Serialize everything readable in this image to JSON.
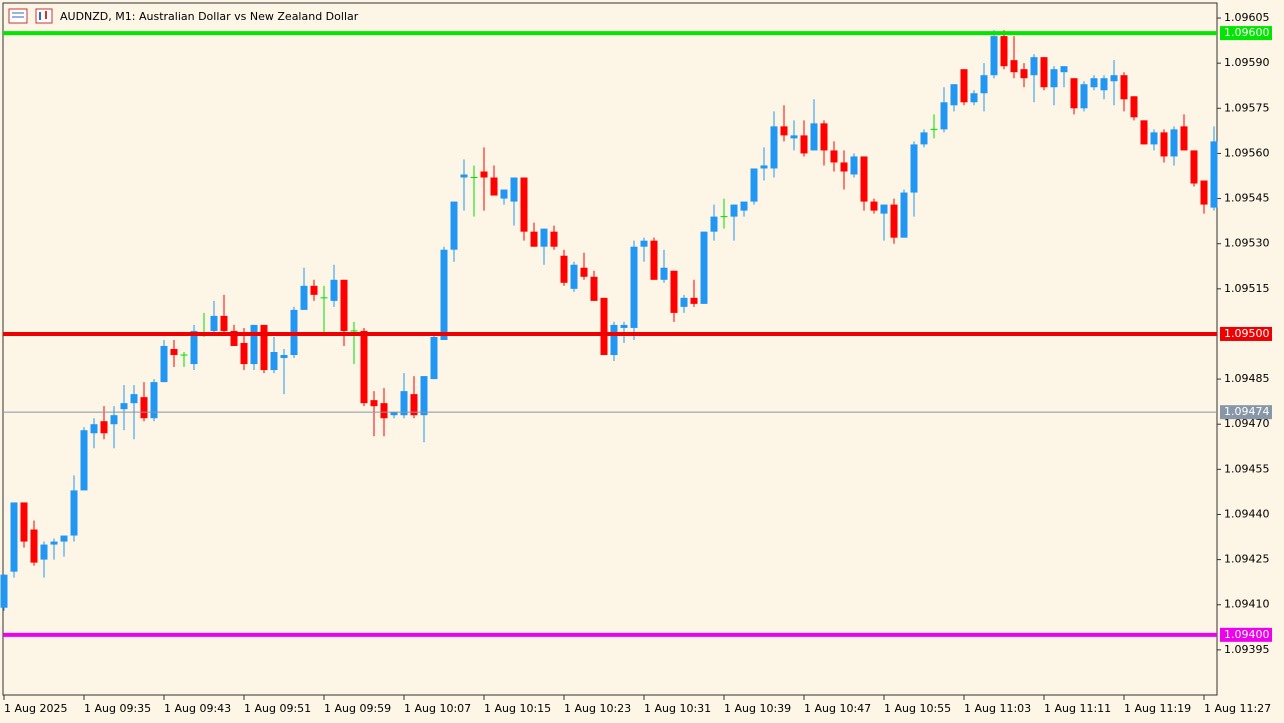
{
  "chart_data": {
    "type": "candlestick",
    "title": "AUDNZD, M1:  Australian Dollar vs New Zealand Dollar",
    "categories": [
      "1 Aug 2025",
      null,
      null,
      null,
      null,
      null,
      null,
      null,
      "1 Aug 09:35",
      null,
      null,
      null,
      null,
      null,
      null,
      null,
      "1 Aug 09:43",
      null,
      null,
      null,
      null,
      null,
      null,
      null,
      "1 Aug 09:51",
      null,
      null,
      null,
      null,
      null,
      null,
      null,
      "1 Aug 09:59",
      null,
      null,
      null,
      null,
      null,
      null,
      null,
      "1 Aug 10:07",
      null,
      null,
      null,
      null,
      null,
      null,
      null,
      "1 Aug 10:15",
      null,
      null,
      null,
      null,
      null,
      null,
      null,
      "1 Aug 10:23",
      null,
      null,
      null,
      null,
      null,
      null,
      null,
      "1 Aug 10:31",
      null,
      null,
      null,
      null,
      null,
      null,
      null,
      "1 Aug 10:39",
      null,
      null,
      null,
      null,
      null,
      null,
      null,
      "1 Aug 10:47",
      null,
      null,
      null,
      null,
      null,
      null,
      null,
      "1 Aug 10:55",
      null,
      null,
      null,
      null,
      null,
      null,
      null,
      "1 Aug 11:03",
      null,
      null,
      null,
      null,
      null,
      null,
      null,
      "1 Aug 11:11",
      null,
      null,
      null,
      null,
      null,
      null,
      null,
      "1 Aug 11:19",
      null,
      null,
      null,
      null,
      null,
      null,
      null,
      "1 Aug 11:27",
      null
    ],
    "open": [
      1.09409,
      1.09421,
      1.09444,
      1.09435,
      1.09425,
      1.0943,
      1.09431,
      1.09433,
      1.09448,
      1.09467,
      1.09471,
      1.0947,
      1.09475,
      1.09477,
      1.09479,
      1.09472,
      1.09484,
      1.09495,
      1.09493,
      1.0949,
      1.095,
      1.09501,
      1.09506,
      1.09501,
      1.09497,
      1.0949,
      1.09503,
      1.09488,
      1.09492,
      1.09493,
      1.09508,
      1.09516,
      1.09512,
      1.09511,
      1.09518,
      1.09501,
      1.09501,
      1.09478,
      1.09477,
      1.09473,
      1.09473,
      1.0948,
      1.09473,
      1.09485,
      1.09498,
      1.09528,
      1.09552,
      1.09552,
      1.09554,
      1.09552,
      1.09545,
      1.09544,
      1.09552,
      1.09534,
      1.09529,
      1.09534,
      1.09526,
      1.09515,
      1.09522,
      1.09519,
      1.09512,
      1.09493,
      1.09502,
      1.09502,
      1.09529,
      1.09531,
      1.09518,
      1.09521,
      1.09509,
      1.09512,
      1.0951,
      1.09534,
      1.09539,
      1.09539,
      1.09541,
      1.09544,
      1.09555,
      1.09555,
      1.09569,
      1.09565,
      1.09566,
      1.09561,
      1.0957,
      1.09561,
      1.09557,
      1.09553,
      1.09559,
      1.09544,
      1.0954,
      1.09543,
      1.09532,
      1.09547,
      1.09563,
      1.09568,
      1.09568,
      1.09576,
      1.09588,
      1.09577,
      1.0958,
      1.09586,
      1.09599,
      1.09591,
      1.09588,
      1.09586,
      1.09592,
      1.09582,
      1.09587,
      1.09585,
      1.09575,
      1.09582,
      1.09581,
      1.09584,
      1.09586,
      1.09579,
      1.09571,
      1.09563,
      1.09567,
      1.09559,
      1.09569,
      1.09561,
      1.09551,
      1.09542
    ],
    "high": [
      1.0942,
      1.09444,
      1.09444,
      1.09438,
      1.09431,
      1.09432,
      1.09433,
      1.09453,
      1.09469,
      1.09472,
      1.09476,
      1.09476,
      1.09483,
      1.09483,
      1.09484,
      1.09485,
      1.09498,
      1.09498,
      1.09494,
      1.09503,
      1.09507,
      1.09511,
      1.09513,
      1.09503,
      1.09502,
      1.09503,
      1.09503,
      1.09499,
      1.09495,
      1.09509,
      1.09522,
      1.09518,
      1.09516,
      1.09523,
      1.09518,
      1.09504,
      1.09502,
      1.09481,
      1.09482,
      1.09474,
      1.09487,
      1.09486,
      1.09486,
      1.095,
      1.09529,
      1.09544,
      1.09558,
      1.09556,
      1.09562,
      1.09556,
      1.09548,
      1.09552,
      1.09552,
      1.09537,
      1.09535,
      1.09536,
      1.09528,
      1.09524,
      1.09527,
      1.09521,
      1.09512,
      1.09504,
      1.09504,
      1.09531,
      1.09532,
      1.09532,
      1.09528,
      1.09521,
      1.09513,
      1.09518,
      1.09534,
      1.09543,
      1.09545,
      1.09543,
      1.09544,
      1.09555,
      1.09562,
      1.09574,
      1.09576,
      1.09571,
      1.09571,
      1.09578,
      1.09571,
      1.09564,
      1.09561,
      1.0956,
      1.09559,
      1.09545,
      1.09543,
      1.09545,
      1.09548,
      1.09564,
      1.09568,
      1.09573,
      1.09582,
      1.09583,
      1.09588,
      1.09581,
      1.0959,
      1.09601,
      1.09601,
      1.09599,
      1.0959,
      1.09593,
      1.09592,
      1.09589,
      1.09589,
      1.09585,
      1.09584,
      1.09586,
      1.09586,
      1.09591,
      1.09587,
      1.09579,
      1.09571,
      1.09568,
      1.09568,
      1.09569,
      1.09573,
      1.09561,
      1.09551,
      1.09569
    ],
    "low": [
      1.09408,
      1.09419,
      1.09429,
      1.09423,
      1.09419,
      1.09425,
      1.09426,
      1.09431,
      1.09448,
      1.09462,
      1.09465,
      1.09462,
      1.09468,
      1.09465,
      1.09471,
      1.09471,
      1.09484,
      1.09489,
      1.09489,
      1.09488,
      1.09499,
      1.095,
      1.095,
      1.09496,
      1.09488,
      1.09488,
      1.09487,
      1.09487,
      1.0948,
      1.09492,
      1.09508,
      1.09511,
      1.095,
      1.09509,
      1.09496,
      1.0949,
      1.09476,
      1.09466,
      1.09466,
      1.09472,
      1.09472,
      1.09472,
      1.09464,
      1.09485,
      1.09498,
      1.09524,
      1.09541,
      1.09539,
      1.09541,
      1.09546,
      1.09543,
      1.09536,
      1.09531,
      1.09529,
      1.09523,
      1.09528,
      1.09516,
      1.09514,
      1.09518,
      1.09511,
      1.09493,
      1.09491,
      1.09497,
      1.09498,
      1.09524,
      1.09518,
      1.09517,
      1.09504,
      1.09507,
      1.09509,
      1.0951,
      1.09531,
      1.09535,
      1.09531,
      1.09539,
      1.09543,
      1.09551,
      1.09552,
      1.09564,
      1.09561,
      1.09559,
      1.09561,
      1.09556,
      1.09554,
      1.09548,
      1.09552,
      1.09541,
      1.0954,
      1.09531,
      1.0953,
      1.09532,
      1.09539,
      1.09562,
      1.09565,
      1.09567,
      1.09574,
      1.09576,
      1.09576,
      1.09574,
      1.09585,
      1.09588,
      1.09585,
      1.09582,
      1.09577,
      1.09581,
      1.09576,
      1.09582,
      1.09573,
      1.09574,
      1.09581,
      1.09578,
      1.09576,
      1.09574,
      1.09571,
      1.09563,
      1.09561,
      1.09557,
      1.09556,
      1.09561,
      1.09549,
      1.0954,
      1.09541
    ],
    "close": [
      1.0942,
      1.09444,
      1.09431,
      1.09424,
      1.0943,
      1.09431,
      1.09433,
      1.09448,
      1.09468,
      1.0947,
      1.09467,
      1.09473,
      1.09477,
      1.0948,
      1.09472,
      1.09484,
      1.09496,
      1.09493,
      1.09493,
      1.09501,
      1.095,
      1.09506,
      1.09501,
      1.09496,
      1.0949,
      1.09503,
      1.09488,
      1.09494,
      1.09493,
      1.09508,
      1.09516,
      1.09513,
      1.09512,
      1.09518,
      1.09501,
      1.09501,
      1.09477,
      1.09476,
      1.09472,
      1.09474,
      1.09481,
      1.09473,
      1.09486,
      1.09499,
      1.09528,
      1.09544,
      1.09553,
      1.09552,
      1.09552,
      1.09546,
      1.09548,
      1.09552,
      1.09534,
      1.09529,
      1.09535,
      1.09529,
      1.09517,
      1.09523,
      1.09519,
      1.09511,
      1.09493,
      1.09503,
      1.09503,
      1.09529,
      1.09531,
      1.09518,
      1.09522,
      1.09507,
      1.09512,
      1.0951,
      1.09534,
      1.09539,
      1.09539,
      1.09543,
      1.09544,
      1.09555,
      1.09556,
      1.09569,
      1.09566,
      1.09566,
      1.0956,
      1.0957,
      1.09561,
      1.09557,
      1.09554,
      1.09559,
      1.09544,
      1.09541,
      1.09543,
      1.09532,
      1.09547,
      1.09563,
      1.09567,
      1.09568,
      1.09577,
      1.09583,
      1.09577,
      1.0958,
      1.09586,
      1.09599,
      1.09589,
      1.09587,
      1.09585,
      1.09592,
      1.09582,
      1.09588,
      1.09589,
      1.09575,
      1.09583,
      1.09585,
      1.09585,
      1.09586,
      1.09578,
      1.09572,
      1.09563,
      1.09567,
      1.09559,
      1.09568,
      1.09561,
      1.0955,
      1.09543,
      1.09564
    ],
    "colors": {
      "up": "#2196f3",
      "down": "#ff0000",
      "doji": "#00e000"
    },
    "ylim": [
      1.0938,
      1.0961
    ],
    "yticks": [
      {
        "value": 1.09605,
        "label": "1.09605"
      },
      {
        "value": 1.0959,
        "label": "1.09590"
      },
      {
        "value": 1.09575,
        "label": "1.09575"
      },
      {
        "value": 1.0956,
        "label": "1.09560"
      },
      {
        "value": 1.09545,
        "label": "1.09545"
      },
      {
        "value": 1.0953,
        "label": "1.09530"
      },
      {
        "value": 1.09515,
        "label": "1.09515"
      },
      {
        "value": 1.09485,
        "label": "1.09485"
      },
      {
        "value": 1.0947,
        "label": "1.09470"
      },
      {
        "value": 1.09455,
        "label": "1.09455"
      },
      {
        "value": 1.0944,
        "label": "1.09440"
      },
      {
        "value": 1.09425,
        "label": "1.09425"
      },
      {
        "value": 1.0941,
        "label": "1.09410"
      },
      {
        "value": 1.09395,
        "label": "1.09395"
      }
    ],
    "levels": [
      {
        "value": 1.096,
        "label": "1.09600",
        "color": "#00e600",
        "width": 4
      },
      {
        "value": 1.095,
        "label": "1.09500",
        "color": "#ee0000",
        "width": 4
      },
      {
        "value": 1.094,
        "label": "1.09400",
        "color": "#ee00ee",
        "width": 4
      },
      {
        "value": 1.09474,
        "label": "1.09474",
        "color": "#8797a8",
        "width": 1
      }
    ]
  }
}
